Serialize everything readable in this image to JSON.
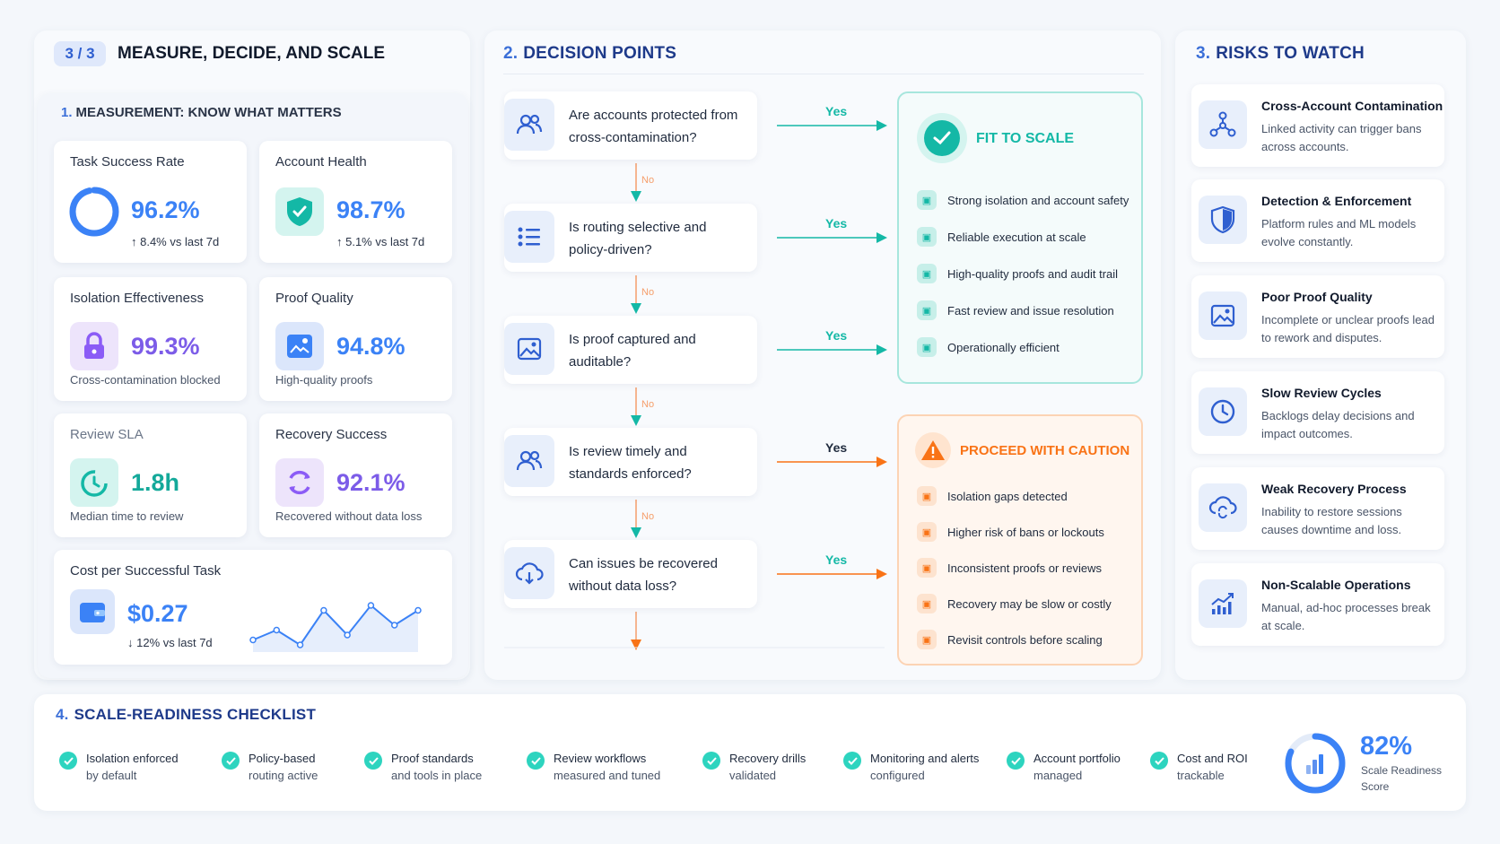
{
  "left": {
    "step_badge": "3 / 3",
    "title": "MEASURE, DECIDE, AND SCALE",
    "measurement": {
      "num": "1.",
      "title": "MEASUREMENT: KNOW WHAT MATTERS",
      "metrics": [
        {
          "label": "Task Success Rate",
          "value": "96.2%",
          "trend": "↑ 8.4% vs last 7d",
          "progress": 0.962
        },
        {
          "label": "Account Health",
          "value": "98.7%",
          "trend": "↑ 5.1% vs last 7d"
        },
        {
          "label": "Isolation Effectiveness",
          "value": "99.3%",
          "sub": "Cross-contamination blocked"
        },
        {
          "label": "Proof Quality",
          "value": "94.8%",
          "sub": "High-quality proofs"
        },
        {
          "label": "Review SLA",
          "value": "1.8h",
          "sub": "Median time to review"
        },
        {
          "label": "Recovery Success",
          "value": "92.1%",
          "sub": "Recovered without data loss"
        }
      ],
      "cost": {
        "label": "Cost per Successful Task",
        "value": "$0.27",
        "trend": "↓ 12% vs last 7d",
        "spark": [
          3,
          5,
          2,
          9,
          4,
          10,
          6,
          9
        ]
      }
    }
  },
  "decisions": {
    "num": "2.",
    "title": "DECISION POINTS",
    "questions": [
      {
        "text": "Are accounts protected from cross-contamination?",
        "icon": "users-icon"
      },
      {
        "text": "Is routing selective and policy-driven?",
        "icon": "list-icon"
      },
      {
        "text": "Is proof captured and auditable?",
        "icon": "image-icon"
      },
      {
        "text": "Is review timely and standards enforced?",
        "icon": "users-icon"
      },
      {
        "text": "Can issues be recovered without data loss?",
        "icon": "cloud-icon"
      }
    ],
    "yes": "Yes",
    "no": "No",
    "fit": {
      "title": "FIT TO SCALE",
      "items": [
        "Strong isolation and account safety",
        "Reliable execution at scale",
        "High-quality proofs and audit trail",
        "Fast review and issue resolution",
        "Operationally efficient"
      ],
      "color": "#14b8a6"
    },
    "caution": {
      "title": "PROCEED WITH CAUTION",
      "items": [
        "Isolation gaps detected",
        "Higher risk of bans or lockouts",
        "Inconsistent proofs or reviews",
        "Recovery may be slow or costly",
        "Revisit controls before scaling"
      ],
      "color": "#f97316"
    }
  },
  "risks": {
    "num": "3.",
    "title": "RISKS TO WATCH",
    "items": [
      {
        "title": "Cross-Account Contamination",
        "desc": "Linked activity can trigger bans across accounts.",
        "icon": "network-icon"
      },
      {
        "title": "Detection & Enforcement",
        "desc": "Platform rules and ML models evolve constantly.",
        "icon": "shield-icon"
      },
      {
        "title": "Poor Proof Quality",
        "desc": "Incomplete or unclear proofs lead to rework and disputes.",
        "icon": "image-icon"
      },
      {
        "title": "Slow Review Cycles",
        "desc": "Backlogs delay decisions and impact outcomes.",
        "icon": "clock-icon"
      },
      {
        "title": "Weak Recovery Process",
        "desc": "Inability to restore sessions causes downtime and loss.",
        "icon": "cloud-sync-icon"
      },
      {
        "title": "Non-Scalable Operations",
        "desc": "Manual, ad-hoc processes break at scale.",
        "icon": "chart-up-icon"
      }
    ]
  },
  "checklist": {
    "num": "4.",
    "title": "SCALE-READINESS CHECKLIST",
    "items": [
      {
        "l1": "Isolation enforced",
        "l2": "by default"
      },
      {
        "l1": "Policy-based",
        "l2": "routing active"
      },
      {
        "l1": "Proof standards",
        "l2": "and tools in place"
      },
      {
        "l1": "Review workflows",
        "l2": "measured and tuned"
      },
      {
        "l1": "Recovery drills",
        "l2": "validated"
      },
      {
        "l1": "Monitoring and alerts",
        "l2": "configured"
      },
      {
        "l1": "Account portfolio",
        "l2": "managed"
      },
      {
        "l1": "Cost and ROI",
        "l2": "trackable"
      }
    ],
    "score": {
      "value": "82%",
      "label1": "Scale Readiness",
      "label2": "Score",
      "fraction": 0.82
    }
  }
}
